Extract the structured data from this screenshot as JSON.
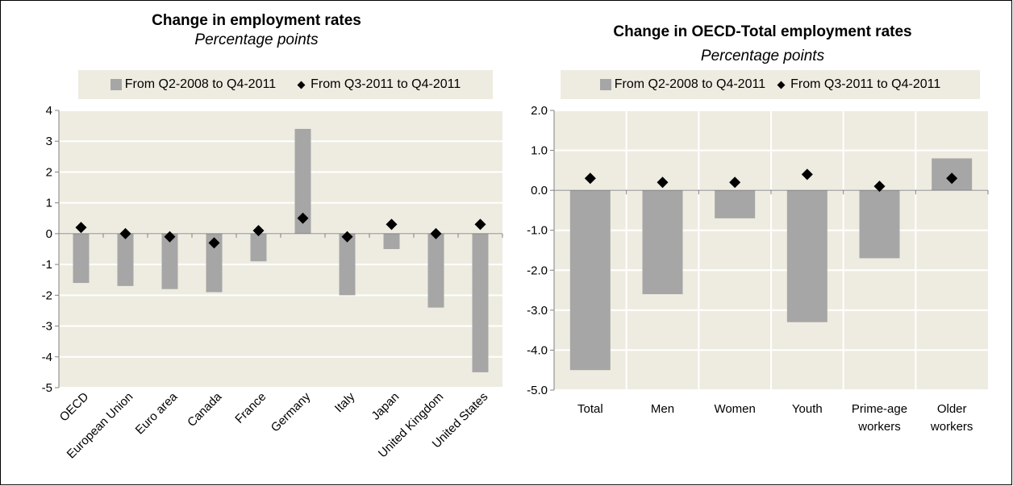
{
  "chart_data": [
    {
      "type": "bar",
      "title": "Change in employment rates",
      "subtitle": "Percentage points",
      "categories": [
        "OECD",
        "European Union",
        "Euro area",
        "Canada",
        "France",
        "Germany",
        "Italy",
        "Japan",
        "United Kingdom",
        "United States"
      ],
      "series": [
        {
          "name": "From Q2-2008 to Q4-2011",
          "kind": "bar",
          "color": "#a6a6a6",
          "values": [
            -1.6,
            -1.7,
            -1.8,
            -1.9,
            -0.9,
            3.4,
            -2.0,
            -0.5,
            -2.4,
            -4.5
          ]
        },
        {
          "name": "From Q3-2011 to Q4-2011",
          "kind": "marker",
          "color": "#000000",
          "values": [
            0.2,
            0.0,
            -0.1,
            -0.3,
            0.1,
            0.5,
            -0.1,
            0.3,
            0.0,
            0.3
          ]
        }
      ],
      "ylim": [
        -5,
        4
      ],
      "yticks": [
        "4",
        "3",
        "2",
        "1",
        "0",
        "-1",
        "-2",
        "-3",
        "-4",
        "-5"
      ],
      "grid": true,
      "legend": "top",
      "plot_background": "#eeece1"
    },
    {
      "type": "bar",
      "title": "Change in OECD-Total  employment rates",
      "subtitle": "Percentage points",
      "categories": [
        [
          "Total"
        ],
        [
          "Men"
        ],
        [
          "Women"
        ],
        [
          "Youth"
        ],
        [
          "Prime-age",
          "workers"
        ],
        [
          "Older",
          "workers"
        ]
      ],
      "series": [
        {
          "name": "From Q2-2008 to Q4-2011",
          "kind": "bar",
          "color": "#a6a6a6",
          "values": [
            -4.5,
            -2.6,
            -0.7,
            -3.3,
            -1.7,
            0.8
          ]
        },
        {
          "name": "From Q3-2011 to Q4-2011",
          "kind": "marker",
          "color": "#000000",
          "values": [
            0.3,
            0.2,
            0.2,
            0.4,
            0.1,
            0.3
          ]
        }
      ],
      "ylim": [
        -5,
        2
      ],
      "yticks": [
        "2.0",
        "1.0",
        "0.0",
        "-1.0",
        "-2.0",
        "-3.0",
        "-4.0",
        "-5.0"
      ],
      "grid": true,
      "legend": "top",
      "plot_background": "#eeece1"
    }
  ]
}
